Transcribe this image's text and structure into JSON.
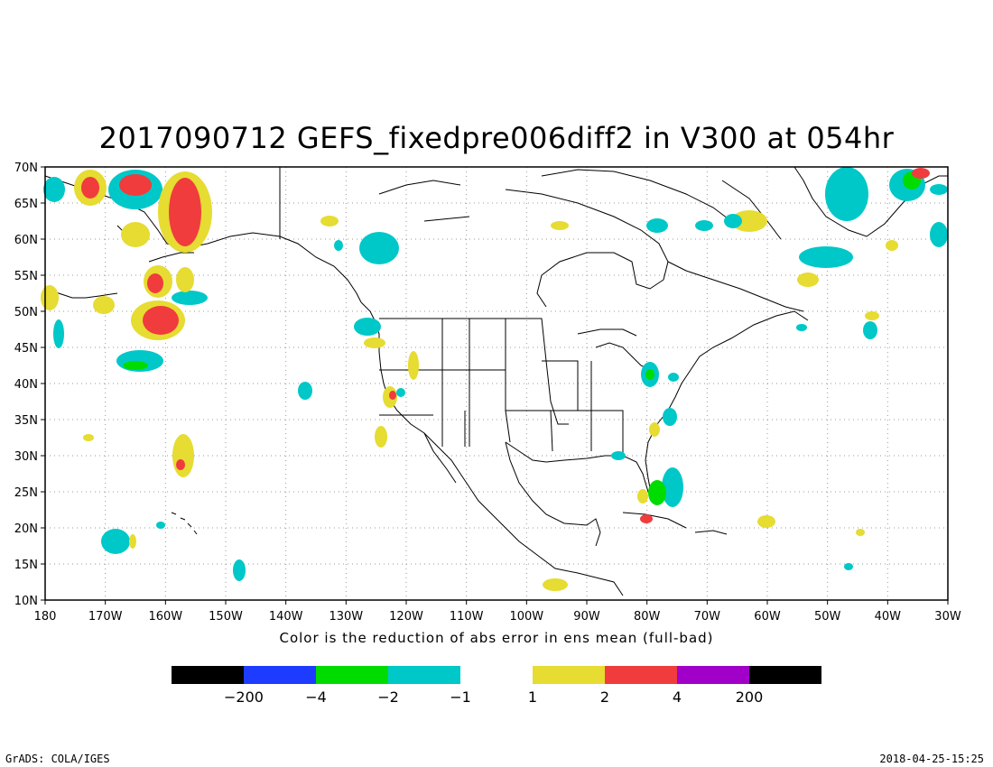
{
  "title": "2017090712 GEFS_fixedpre006diff2 in V300 at 054hr",
  "caption": "Color is the reduction of abs error in ens mean (full-bad)",
  "footer": {
    "left": "GrADS: COLA/IGES",
    "right": "2018-04-25-15:25"
  },
  "axes": {
    "lon_labels": [
      "180",
      "170W",
      "160W",
      "150W",
      "140W",
      "130W",
      "120W",
      "110W",
      "100W",
      "90W",
      "80W",
      "70W",
      "60W",
      "50W",
      "40W",
      "30W"
    ],
    "lat_labels": [
      "10N",
      "15N",
      "20N",
      "25N",
      "30N",
      "35N",
      "40N",
      "45N",
      "50N",
      "55N",
      "60N",
      "65N",
      "70N"
    ],
    "lon_range": [
      -180,
      -30
    ],
    "lat_range": [
      10,
      70
    ],
    "grid": "dotted"
  },
  "legend": {
    "negative": [
      {
        "color": "#000000",
        "label": "-200"
      },
      {
        "color": "#1e3cff",
        "label": "-4"
      },
      {
        "color": "#00dc00",
        "label": "-2"
      },
      {
        "color": "#00c8c8",
        "label": "-1"
      }
    ],
    "positive": [
      {
        "color": "#e6dc32",
        "label": "1"
      },
      {
        "color": "#f03c3c",
        "label": "2"
      },
      {
        "color": "#a000c8",
        "label": "4"
      },
      {
        "color": "#000000",
        "label": "200"
      }
    ]
  },
  "colors": {
    "neg1": "#00c8c8",
    "neg2": "#00dc00",
    "pos1": "#e6dc32",
    "pos2": "#f03c3c"
  }
}
